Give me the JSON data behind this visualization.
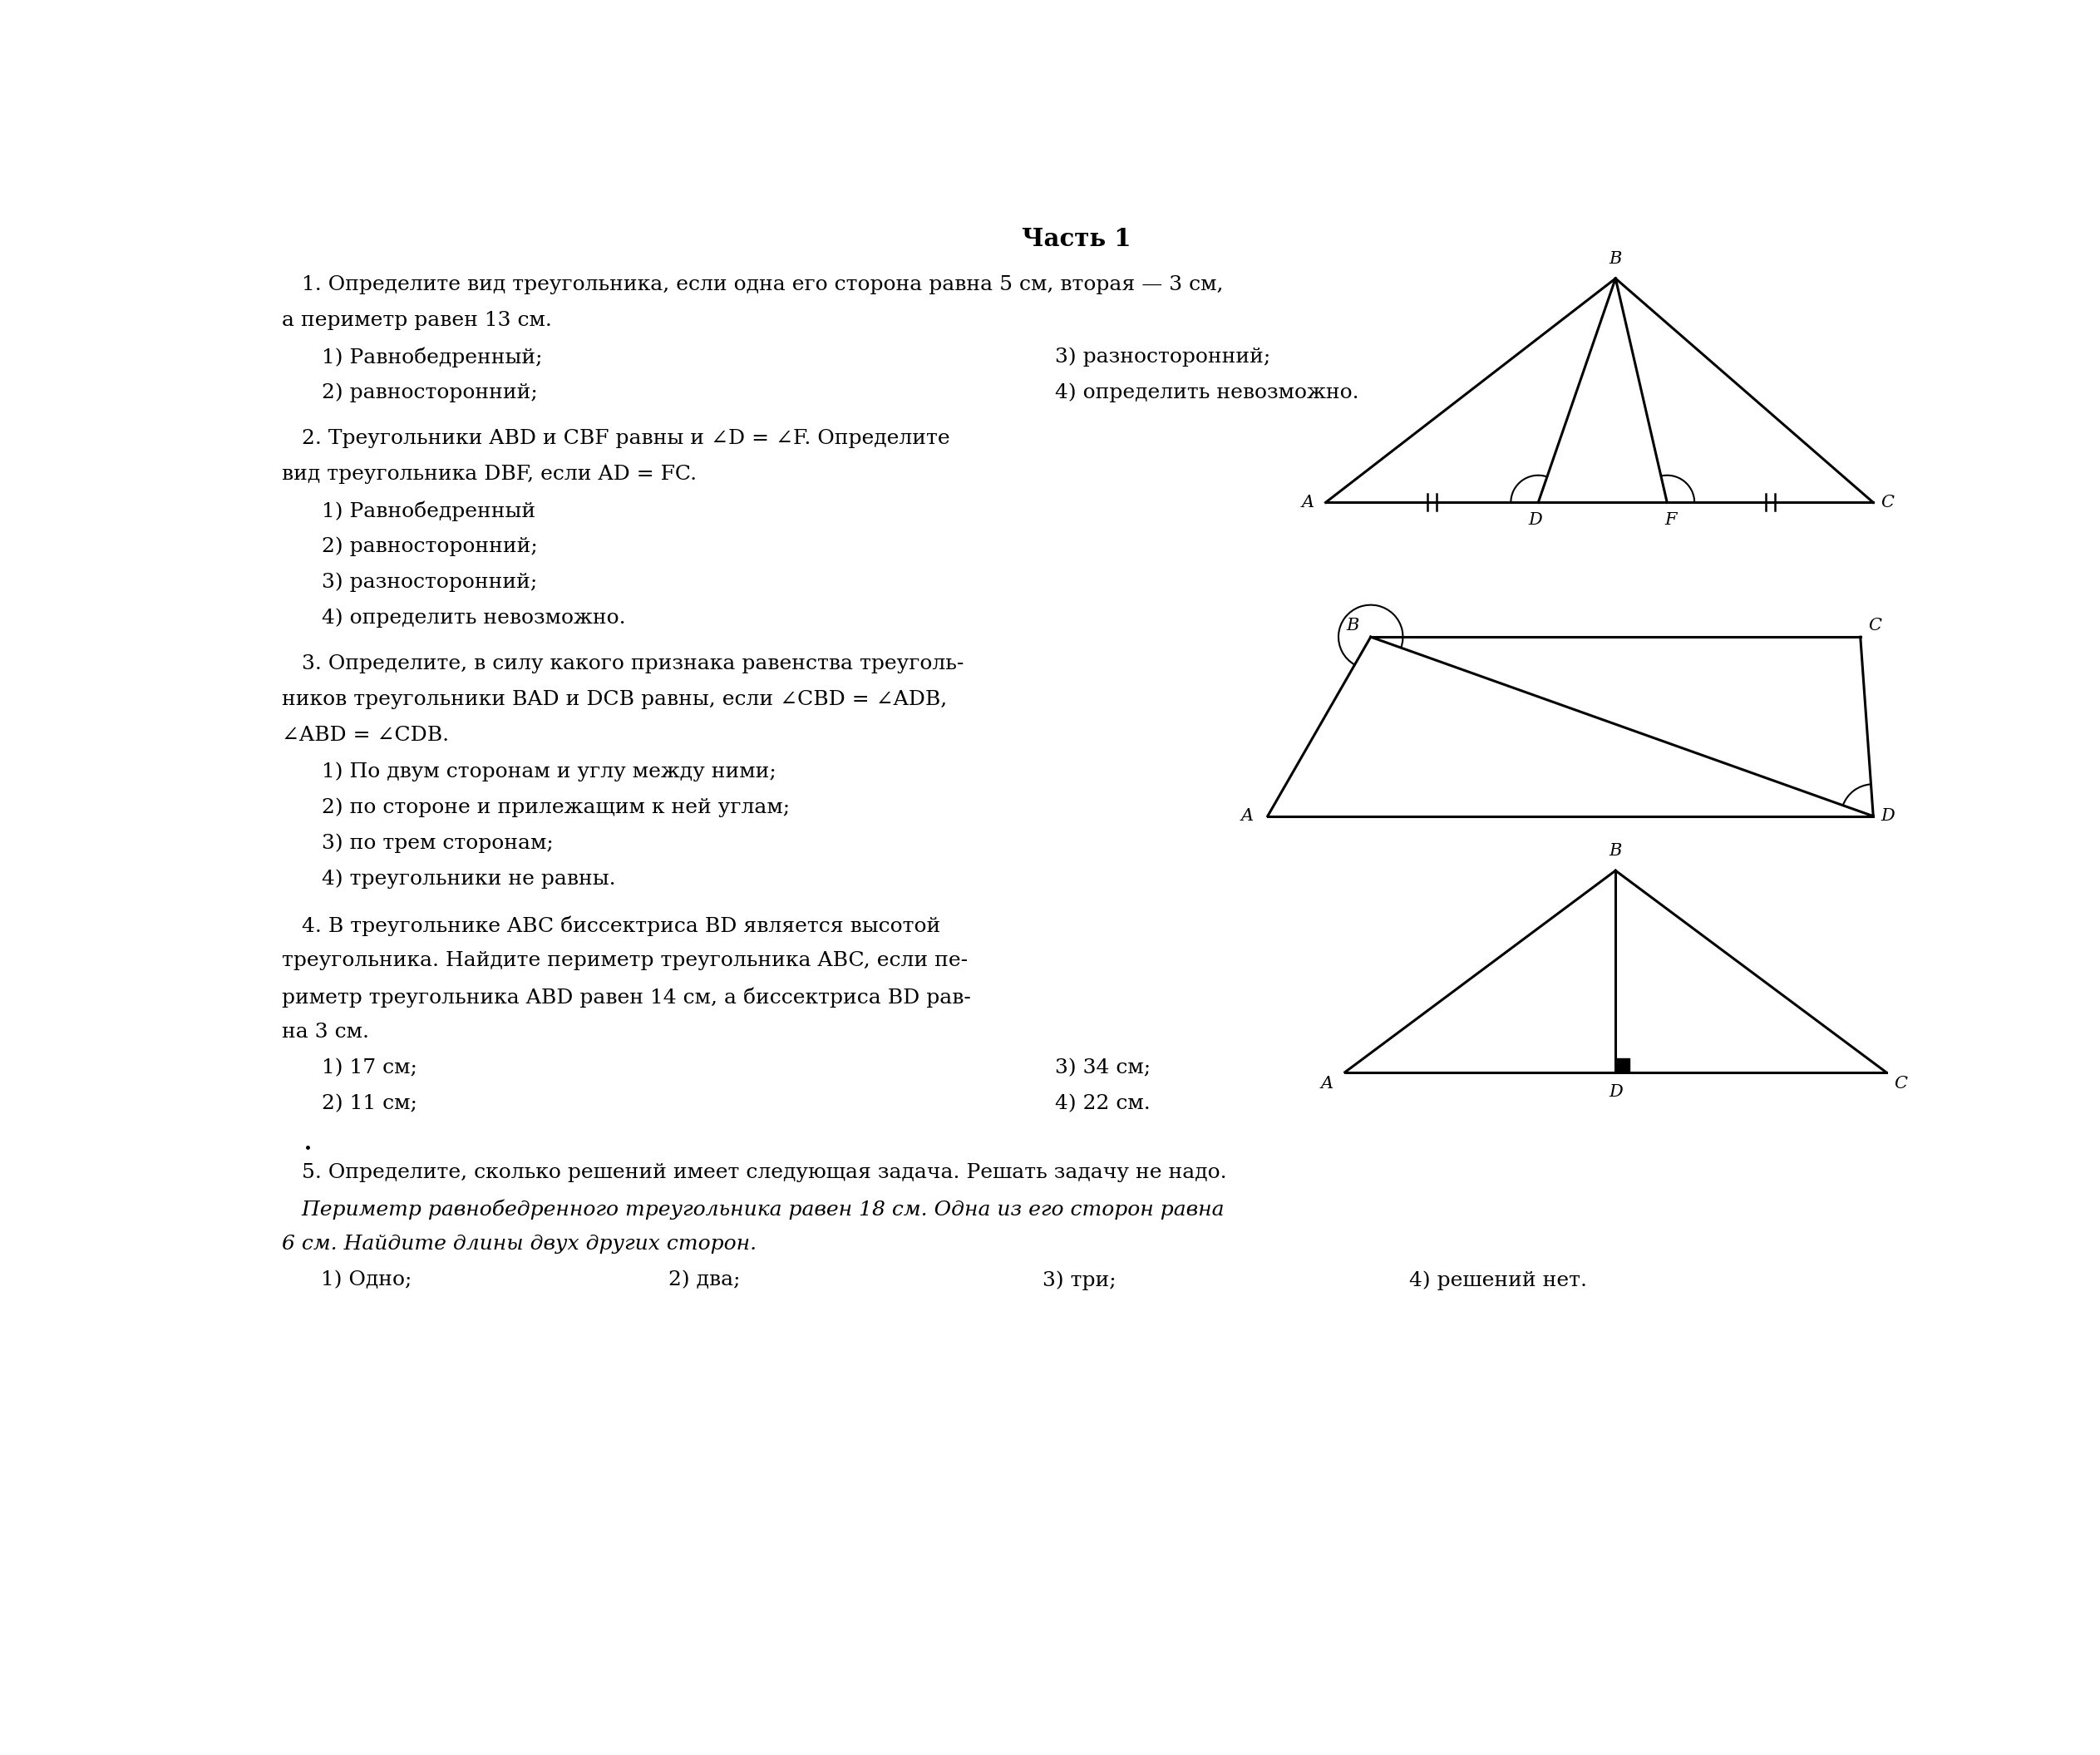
{
  "title": "Часть 1",
  "bg_color": "#ffffff",
  "text_color": "#000000",
  "fs_title": 21,
  "fs_body": 18,
  "fs_diagram": 15,
  "q1_line1": "   1. Определите вид треугольника, если одна его сторона равна 5 см, вторая — 3 см,",
  "q1_line2": "а периметр равен 13 см.",
  "q1_a1": "      1) Равнобедренный;",
  "q1_a2": "      2) равносторонний;",
  "q1_a3": "3) разносторонний;",
  "q1_a4": "4) определить невозможно.",
  "q2_line1": "   2. Треугольники ABD и CBF равны и ∠D = ∠F. Определите",
  "q2_line2": "вид треугольника DBF, если AD = FC.",
  "q2_a1": "      1) Равнобедренный",
  "q2_a2": "      2) равносторонний;",
  "q2_a3": "      3) разносторонний;",
  "q2_a4": "      4) определить невозможно.",
  "q3_line1": "   3. Определите, в силу какого признака равенства треуголь-",
  "q3_line2": "ников треугольники BAD и DCB равны, если ∠CBD = ∠ADB,",
  "q3_line3": "∠ABD = ∠CDB.",
  "q3_a1": "      1) По двум сторонам и углу между ними;",
  "q3_a2": "      2) по стороне и прилежащим к ней углам;",
  "q3_a3": "      3) по трем сторонам;",
  "q3_a4": "      4) треугольники не равны.",
  "q4_line1": "   4. В треугольнике ABC биссектриса BD является высотой",
  "q4_line2": "треугольника. Найдите периметр треугольника ABC, если пе-",
  "q4_line3": "риметр треугольника ABD равен 14 см, а биссектриса BD рав-",
  "q4_line4": "на 3 см.",
  "q4_a1": "      1) 17 см;",
  "q4_a2": "      2) 11 см;",
  "q4_a3": "3) 34 см;",
  "q4_a4": "4) 22 см.",
  "q5_line1": "   5. Определите, сколько решений имеет следующая задача. Решать задачу не надо.",
  "q5_line2": "   Периметр равнобедренного треугольника равен 18 см. Одна из его сторон равна",
  "q5_line3": "6 см. Найдите длины двух других сторон.",
  "q5_a1": "   1) Одно;",
  "q5_a2": "2) два;",
  "q5_a3": "3) три;",
  "q5_a4": "4) решений нет."
}
